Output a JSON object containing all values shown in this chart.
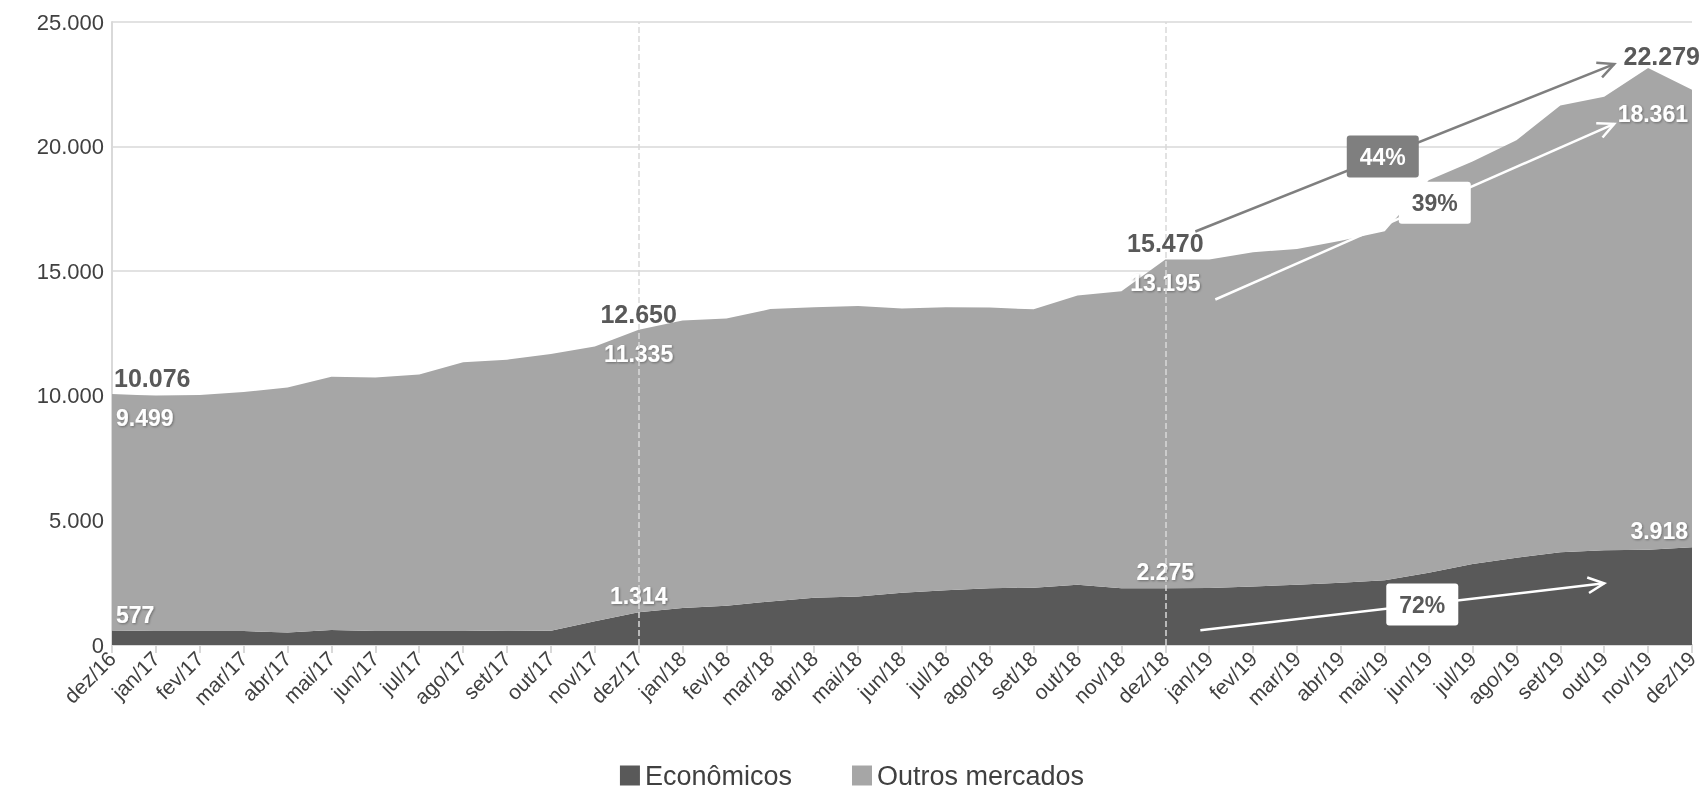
{
  "chart_data": {
    "type": "area",
    "stacked": true,
    "categories": [
      "dez/16",
      "jan/17",
      "fev/17",
      "mar/17",
      "abr/17",
      "mai/17",
      "jun/17",
      "jul/17",
      "ago/17",
      "set/17",
      "out/17",
      "nov/17",
      "dez/17",
      "jan/18",
      "fev/18",
      "mar/18",
      "abr/18",
      "mai/18",
      "jun/18",
      "jul/18",
      "ago/18",
      "set/18",
      "out/18",
      "nov/18",
      "dez/18",
      "jan/19",
      "fev/19",
      "mar/19",
      "abr/19",
      "mai/19",
      "jun/19",
      "jul/19",
      "ago/19",
      "set/19",
      "out/19",
      "nov/19",
      "dez/19"
    ],
    "series": [
      {
        "name": "Econômicos",
        "color": "#595959",
        "values": [
          577,
          560,
          560,
          560,
          500,
          600,
          560,
          560,
          560,
          580,
          570,
          950,
          1314,
          1480,
          1580,
          1750,
          1900,
          1950,
          2100,
          2200,
          2280,
          2300,
          2420,
          2280,
          2275,
          2290,
          2350,
          2420,
          2500,
          2600,
          2900,
          3250,
          3500,
          3720,
          3800,
          3820,
          3918
        ],
        "value_labels": [
          "577",
          null,
          null,
          null,
          null,
          null,
          null,
          null,
          null,
          null,
          null,
          null,
          "1.314",
          null,
          null,
          null,
          null,
          null,
          null,
          null,
          null,
          null,
          null,
          null,
          "2.275",
          null,
          null,
          null,
          null,
          null,
          null,
          null,
          null,
          null,
          null,
          null,
          "3.918"
        ]
      },
      {
        "name": "Outros mercados",
        "color": "#a6a6a6",
        "values": [
          9499,
          9440,
          9470,
          9590,
          9830,
          10160,
          10170,
          10290,
          10790,
          10870,
          11110,
          11030,
          11335,
          11540,
          11520,
          11730,
          11650,
          11650,
          11400,
          11350,
          11260,
          11170,
          11600,
          11920,
          13195,
          13180,
          13410,
          13470,
          13720,
          14000,
          15750,
          16150,
          16750,
          17930,
          18200,
          19330,
          18361
        ],
        "value_labels": [
          "9.499",
          null,
          null,
          null,
          null,
          null,
          null,
          null,
          null,
          null,
          null,
          null,
          "11.335",
          null,
          null,
          null,
          null,
          null,
          null,
          null,
          null,
          null,
          null,
          null,
          "13.195",
          null,
          null,
          null,
          null,
          null,
          null,
          null,
          null,
          null,
          null,
          null,
          "18.361"
        ]
      }
    ],
    "totals": [
      "10.076",
      null,
      null,
      null,
      null,
      null,
      null,
      null,
      null,
      null,
      null,
      null,
      "12.650",
      null,
      null,
      null,
      null,
      null,
      null,
      null,
      null,
      null,
      null,
      null,
      "15.470",
      null,
      null,
      null,
      null,
      null,
      null,
      null,
      null,
      null,
      null,
      null,
      "22.279"
    ],
    "ylim": [
      0,
      25000
    ],
    "yticks": [
      0,
      {
        "value": 5000,
        "label": "5.000"
      },
      {
        "value": 10000,
        "label": "10.000"
      },
      {
        "value": 15000,
        "label": "15.000"
      },
      {
        "value": 20000,
        "label": "20.000"
      },
      {
        "value": 25000,
        "label": "25.000"
      }
    ],
    "ref_lines": [
      {
        "axis": "x",
        "value": "dez/17",
        "label": null,
        "color": "#d9d9d9",
        "line_style": "dashed"
      },
      {
        "axis": "x",
        "value": "dez/18",
        "label": null,
        "color": "#d9d9d9",
        "line_style": "dashed"
      }
    ],
    "annotations": [
      "44%",
      "39%",
      "72%"
    ],
    "grid": "y",
    "legend": "bottom"
  }
}
